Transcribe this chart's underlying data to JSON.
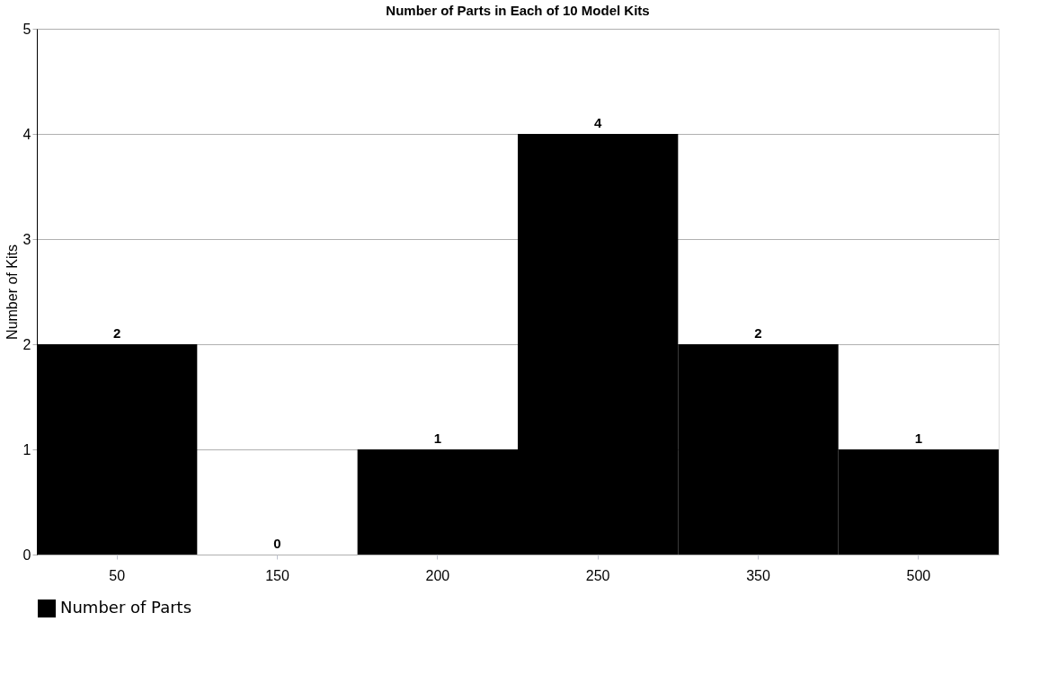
{
  "chart_data": {
    "type": "bar",
    "title": "Number of Parts in Each of 10 Model Kits",
    "ylabel": "Number of Kits",
    "categories": [
      "50",
      "150",
      "200",
      "250",
      "350",
      "500"
    ],
    "series": [
      {
        "name": "Number of Parts",
        "color": "#000000",
        "values": [
          2,
          0,
          1,
          4,
          2,
          1
        ]
      }
    ],
    "ylim": [
      0,
      5
    ],
    "yticks": [
      0,
      1,
      2,
      3,
      4,
      5
    ],
    "grid": "y",
    "legend": "bottom",
    "data_labels": true
  }
}
